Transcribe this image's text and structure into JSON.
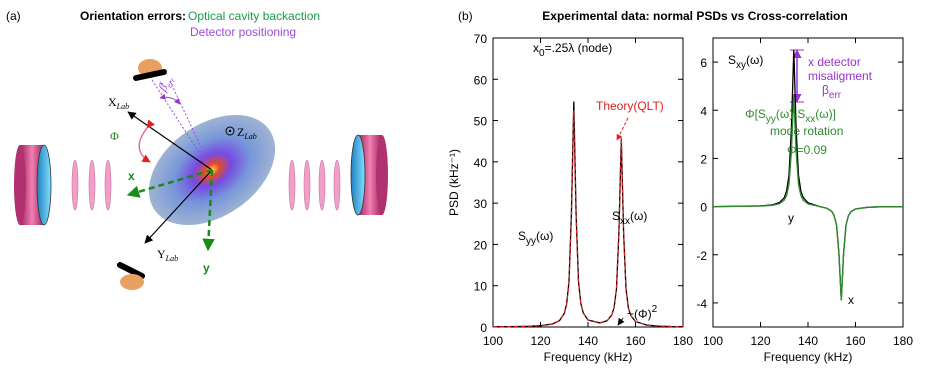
{
  "panel_a": {
    "label": "(a)",
    "heading": "Orientation errors:",
    "cavity": "Optical cavity backaction",
    "detector": "Detector positioning",
    "x_lab": {
      "base": "X",
      "sub": "Lab"
    },
    "y_lab": {
      "base": "Y",
      "sub": "Lab"
    },
    "z_lab": {
      "base": "Z",
      "sub": "Lab"
    },
    "beta": {
      "base": "β",
      "sub": "err",
      "sup": "x"
    },
    "phi": "Φ",
    "x": "x",
    "y": "y"
  },
  "panel_b": {
    "label": "(b)",
    "title": "Experimental data: normal PSDs vs Cross-correlation"
  },
  "chart_data": [
    {
      "type": "line",
      "ylabel": "PSD (kHz⁻¹)",
      "xlabel": "Frequency (kHz)",
      "xlim": [
        100,
        180
      ],
      "xticks": [
        100,
        120,
        140,
        160,
        180
      ],
      "ylim": [
        0,
        70
      ],
      "yticks": [
        0,
        10,
        20,
        30,
        40,
        50,
        60,
        70
      ],
      "x": [
        100,
        105,
        110,
        115,
        120,
        125,
        128,
        130,
        131,
        132,
        133,
        134,
        135,
        136,
        137,
        138,
        140,
        145,
        148,
        150,
        151,
        152,
        153,
        154,
        155,
        156,
        157,
        158,
        160,
        165,
        170,
        175,
        180
      ],
      "series": [
        {
          "color": "#000000",
          "dashed": false,
          "values": [
            0.06,
            0.08,
            0.12,
            0.18,
            0.32,
            0.72,
            1.54,
            3.29,
            5.54,
            10.99,
            27.35,
            54.61,
            27.36,
            11.03,
            5.61,
            3.38,
            1.7,
            1.0,
            1.51,
            2.89,
            4.74,
            9.27,
            22.9,
            45.64,
            22.88,
            9.22,
            4.66,
            2.78,
            1.31,
            0.43,
            0.22,
            0.13,
            0.1
          ]
        },
        {
          "color": "#e02020",
          "dashed": true,
          "values": [
            0.06,
            0.08,
            0.12,
            0.18,
            0.3,
            0.7,
            1.5,
            3.2,
            5.4,
            10.6,
            26.5,
            52.5,
            26.6,
            10.7,
            5.5,
            3.3,
            1.7,
            1.0,
            1.5,
            2.9,
            4.8,
            9.3,
            23.0,
            46.0,
            23.0,
            9.3,
            4.7,
            2.8,
            1.3,
            0.43,
            0.22,
            0.13,
            0.1
          ]
        }
      ],
      "annotations": [
        {
          "color": "#000000",
          "parts": [
            {
              "text": "x"
            },
            {
              "sub": "0"
            },
            {
              "text": "=.25λ (node)"
            }
          ]
        },
        {
          "color": "#e02020",
          "parts": [
            {
              "text": "Theory(QLT)"
            }
          ]
        },
        {
          "color": "#000000",
          "parts": [
            {
              "text": "S"
            },
            {
              "sub": "yy"
            },
            {
              "text": "(ω)"
            }
          ]
        },
        {
          "color": "#000000",
          "parts": [
            {
              "text": "S"
            },
            {
              "sub": "xx"
            },
            {
              "text": "(ω)"
            }
          ]
        },
        {
          "color": "#000000",
          "parts": [
            {
              "text": "~(Φ)"
            },
            {
              "sup": "2"
            }
          ]
        }
      ]
    },
    {
      "type": "line",
      "xlabel": "Frequency (kHz)",
      "xlim": [
        100,
        180
      ],
      "xticks": [
        100,
        120,
        140,
        160,
        180
      ],
      "ylim": [
        -5,
        7
      ],
      "yticks": [
        -4,
        -2,
        0,
        2,
        4,
        6
      ],
      "x": [
        100,
        110,
        120,
        125,
        128,
        130,
        131,
        132,
        133,
        134,
        135,
        136,
        137,
        138,
        140,
        145,
        148,
        150,
        151,
        152,
        153,
        154,
        155,
        156,
        157,
        158,
        160,
        165,
        170,
        180
      ],
      "series": [
        {
          "color": "#000000",
          "dashed": false,
          "values": [
            0.0,
            0.01,
            0.03,
            0.07,
            0.17,
            0.37,
            0.65,
            1.3,
            3.25,
            6.5,
            3.25,
            1.3,
            0.64,
            0.37,
            0.16,
            0.0,
            -0.07,
            -0.2,
            -0.37,
            -0.76,
            -1.93,
            -3.88,
            -1.94,
            -0.77,
            -0.38,
            -0.22,
            -0.1,
            -0.03,
            -0.01,
            0.0
          ]
        },
        {
          "color": "#2e8b2e",
          "dashed": false,
          "values": [
            0.0,
            0.01,
            0.02,
            0.05,
            0.12,
            0.27,
            0.46,
            0.92,
            2.3,
            4.6,
            2.3,
            0.92,
            0.45,
            0.26,
            0.11,
            0.0,
            -0.07,
            -0.2,
            -0.37,
            -0.76,
            -1.93,
            -3.9,
            -1.94,
            -0.77,
            -0.38,
            -0.22,
            -0.1,
            -0.03,
            -0.01,
            0.0
          ]
        }
      ],
      "annotations": [
        {
          "color": "#000000",
          "parts": [
            {
              "text": "S"
            },
            {
              "sub": "xy"
            },
            {
              "text": "(ω)"
            }
          ]
        },
        {
          "color": "#9b30d0",
          "parts": [
            {
              "text": "x detector"
            }
          ]
        },
        {
          "color": "#9b30d0",
          "parts": [
            {
              "text": "misaligment"
            }
          ]
        },
        {
          "color": "#9b30d0",
          "parts": [
            {
              "text": "β"
            },
            {
              "sub": "err"
            }
          ]
        },
        {
          "color": "#2e8b2e",
          "parts": [
            {
              "text": "Φ[S"
            },
            {
              "sub": "yy"
            },
            {
              "text": "(ω)-S"
            },
            {
              "sub": "xx"
            },
            {
              "text": "(ω)]"
            }
          ]
        },
        {
          "color": "#2e8b2e",
          "parts": [
            {
              "text": "mode rotation"
            }
          ]
        },
        {
          "color": "#2e8b2e",
          "parts": [
            {
              "text": "Φ=0.09"
            }
          ]
        },
        {
          "color": "#000000",
          "parts": [
            {
              "text": "y"
            }
          ]
        },
        {
          "color": "#000000",
          "parts": [
            {
              "text": "x"
            }
          ]
        }
      ]
    }
  ]
}
